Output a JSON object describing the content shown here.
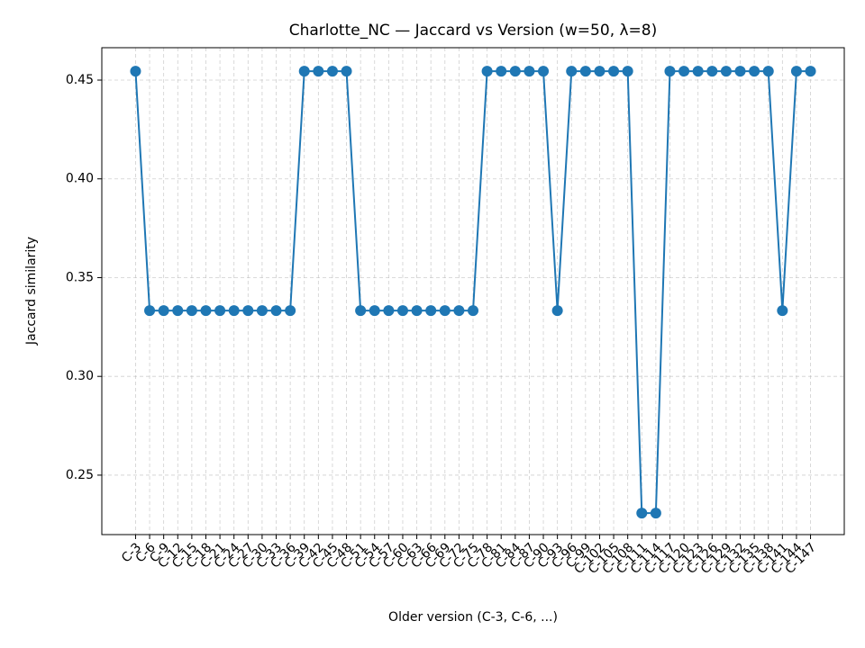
{
  "chart_data": {
    "type": "line",
    "title": "Charlotte_NC — Jaccard vs Version (w=50, λ=8)",
    "x_label": "Older version (C-3, C-6, ...)",
    "y_label": "Jaccard similarity",
    "categories": [
      "C-3",
      "C-6",
      "C-9",
      "C-12",
      "C-15",
      "C-18",
      "C-21",
      "C-24",
      "C-27",
      "C-30",
      "C-33",
      "C-36",
      "C-39",
      "C-42",
      "C-45",
      "C-48",
      "C-51",
      "C-54",
      "C-57",
      "C-60",
      "C-63",
      "C-66",
      "C-69",
      "C-72",
      "C-75",
      "C-78",
      "C-81",
      "C-84",
      "C-87",
      "C-90",
      "C-93",
      "C-96",
      "C-99",
      "C-102",
      "C-105",
      "C-108",
      "C-111",
      "C-114",
      "C-117",
      "C-120",
      "C-123",
      "C-126",
      "C-129",
      "C-132",
      "C-135",
      "C-138",
      "C-141",
      "C-144",
      "C-147"
    ],
    "values": [
      0.4545,
      0.3333,
      0.3333,
      0.3333,
      0.3333,
      0.3333,
      0.3333,
      0.3333,
      0.3333,
      0.3333,
      0.3333,
      0.3333,
      0.4545,
      0.4545,
      0.4545,
      0.4545,
      0.3333,
      0.3333,
      0.3333,
      0.3333,
      0.3333,
      0.3333,
      0.3333,
      0.3333,
      0.3333,
      0.4545,
      0.4545,
      0.4545,
      0.4545,
      0.4545,
      0.3333,
      0.4545,
      0.4545,
      0.4545,
      0.4545,
      0.4545,
      0.2308,
      0.2308,
      0.4545,
      0.4545,
      0.4545,
      0.4545,
      0.4545,
      0.4545,
      0.4545,
      0.4545,
      0.3333,
      0.4545,
      0.4545
    ],
    "color": "#1f77b4",
    "ylim": [
      0.2199,
      0.4664
    ],
    "yticks": [
      0.25,
      {
        "value": 0.3,
        "label": "0.30"
      },
      0.35,
      {
        "value": 0.4,
        "label": "0.40"
      },
      0.45
    ],
    "grid": true
  }
}
